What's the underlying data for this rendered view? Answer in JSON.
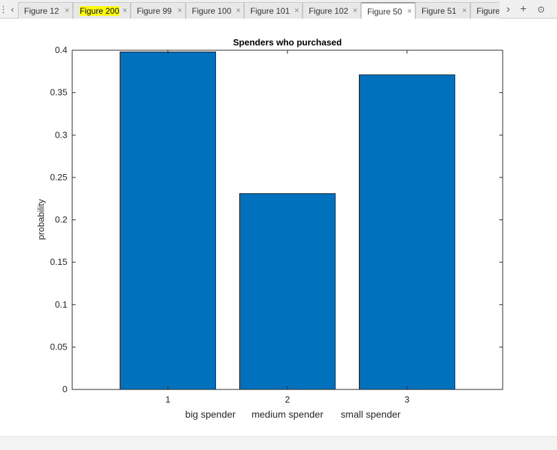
{
  "tabbar": {
    "tabs": [
      {
        "label": "Figure 12",
        "highlighted": false,
        "active": false
      },
      {
        "label": "Figure 200",
        "highlighted": true,
        "active": false
      },
      {
        "label": "Figure 99",
        "highlighted": false,
        "active": false
      },
      {
        "label": "Figure 100",
        "highlighted": false,
        "active": false
      },
      {
        "label": "Figure 101",
        "highlighted": false,
        "active": false
      },
      {
        "label": "Figure 102",
        "highlighted": false,
        "active": false
      },
      {
        "label": "Figure 50",
        "highlighted": false,
        "active": true
      },
      {
        "label": "Figure 51",
        "highlighted": false,
        "active": false
      },
      {
        "label": "Figure",
        "highlighted": false,
        "active": false
      }
    ],
    "close_glyph": "×",
    "left_arrow": "‹",
    "right_arrow": "›",
    "add_glyph": "+",
    "menu_glyph": "⊙"
  },
  "chart_data": {
    "type": "bar",
    "title": "Spenders who purchased",
    "ylabel": "probability",
    "xlabel": "",
    "categories": [
      "1",
      "2",
      "3"
    ],
    "category_names": [
      "big spender",
      "medium spender",
      "small spender"
    ],
    "values": [
      0.398,
      0.231,
      0.371
    ],
    "ylim": [
      0,
      0.4
    ],
    "xlim": [
      0.2,
      3.8
    ],
    "yticks": [
      "0",
      "0.05",
      "0.1",
      "0.15",
      "0.2",
      "0.25",
      "0.3",
      "0.35",
      "0.4"
    ],
    "bar_color": "#0072BD",
    "grid": false
  }
}
